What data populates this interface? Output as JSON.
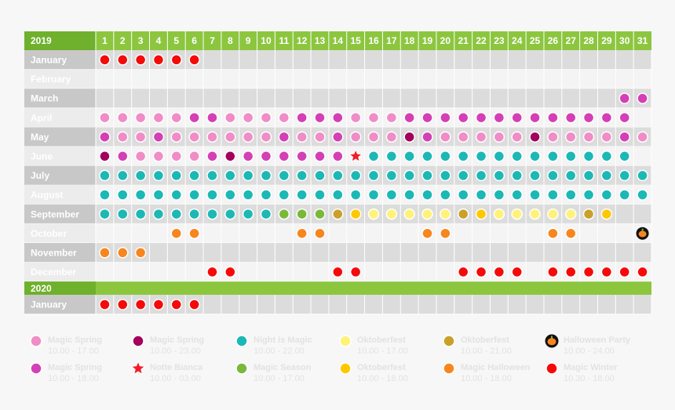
{
  "days": [
    1,
    2,
    3,
    4,
    5,
    6,
    7,
    8,
    9,
    10,
    11,
    12,
    13,
    14,
    15,
    16,
    17,
    18,
    19,
    20,
    21,
    22,
    23,
    24,
    25,
    26,
    27,
    28,
    29,
    30,
    31
  ],
  "legend": [
    {
      "name": "Magic Spring",
      "time": "10.00 - 17.00",
      "color": "#f08cc6",
      "shape": "dot"
    },
    {
      "name": "Magic Spring",
      "time": "10.00 - 23.00",
      "color": "#a3005c",
      "shape": "dot"
    },
    {
      "name": "Night is Magic",
      "time": "10.00 - 22.00",
      "color": "#1cb8b5",
      "shape": "dot"
    },
    {
      "name": "Oktoberfest",
      "time": "10.00 - 17.00",
      "color": "#fff27a",
      "shape": "dot"
    },
    {
      "name": "Oktoberfest",
      "time": "10.00 - 21.00",
      "color": "#c9a02a",
      "shape": "dot"
    },
    {
      "name": "Halloween Party",
      "time": "10.00 - 24.00",
      "color": "#f7861e",
      "shape": "pumpkin"
    },
    {
      "name": "Magic Spring",
      "time": "10.00 - 18.00",
      "color": "#d43fb5",
      "shape": "dot"
    },
    {
      "name": "Notte Bianca",
      "time": "10.00 - 03.00",
      "color": "#f01c2c",
      "shape": "star"
    },
    {
      "name": "Magic Season",
      "time": "10.00 - 17.00",
      "color": "#7ab83a",
      "shape": "dot"
    },
    {
      "name": "Oktoberfest",
      "time": "10.00 - 18.00",
      "color": "#ffc800",
      "shape": "dot"
    },
    {
      "name": "Magic Halloween",
      "time": "10.00 - 18.00",
      "color": "#f7861e",
      "shape": "dot"
    },
    {
      "name": "Magic Winter",
      "time": "10.30 - 18.00",
      "color": "#f50a0a",
      "shape": "dot"
    }
  ],
  "years": [
    {
      "label": "2019",
      "months": [
        {
          "name": "January",
          "cells": [
            11,
            11,
            11,
            11,
            11,
            11,
            null,
            null,
            null,
            null,
            null,
            null,
            null,
            null,
            null,
            null,
            null,
            null,
            null,
            null,
            null,
            null,
            null,
            null,
            null,
            null,
            null,
            null,
            null,
            null,
            null
          ]
        },
        {
          "name": "February",
          "cells": [
            null,
            null,
            null,
            null,
            null,
            null,
            null,
            null,
            null,
            null,
            null,
            null,
            null,
            null,
            null,
            null,
            null,
            null,
            null,
            null,
            null,
            null,
            null,
            null,
            null,
            null,
            null,
            null,
            null,
            null,
            null
          ]
        },
        {
          "name": "March",
          "cells": [
            null,
            null,
            null,
            null,
            null,
            null,
            null,
            null,
            null,
            null,
            null,
            null,
            null,
            null,
            null,
            null,
            null,
            null,
            null,
            null,
            null,
            null,
            null,
            null,
            null,
            null,
            null,
            null,
            null,
            6,
            6
          ]
        },
        {
          "name": "April",
          "cells": [
            0,
            0,
            0,
            0,
            0,
            6,
            6,
            0,
            0,
            0,
            0,
            6,
            6,
            6,
            0,
            0,
            0,
            6,
            6,
            6,
            6,
            6,
            6,
            6,
            6,
            6,
            6,
            6,
            6,
            6,
            null
          ]
        },
        {
          "name": "May",
          "cells": [
            6,
            0,
            0,
            6,
            0,
            0,
            0,
            0,
            0,
            0,
            6,
            0,
            0,
            6,
            0,
            0,
            0,
            1,
            6,
            0,
            0,
            0,
            0,
            0,
            1,
            0,
            0,
            0,
            0,
            6,
            0
          ]
        },
        {
          "name": "June",
          "cells": [
            1,
            6,
            0,
            0,
            0,
            0,
            6,
            1,
            6,
            6,
            6,
            6,
            6,
            6,
            7,
            2,
            2,
            2,
            2,
            2,
            2,
            2,
            2,
            2,
            2,
            2,
            2,
            2,
            2,
            2,
            null
          ]
        },
        {
          "name": "July",
          "cells": [
            2,
            2,
            2,
            2,
            2,
            2,
            2,
            2,
            2,
            2,
            2,
            2,
            2,
            2,
            2,
            2,
            2,
            2,
            2,
            2,
            2,
            2,
            2,
            2,
            2,
            2,
            2,
            2,
            2,
            2,
            2
          ]
        },
        {
          "name": "August",
          "cells": [
            2,
            2,
            2,
            2,
            2,
            2,
            2,
            2,
            2,
            2,
            2,
            2,
            2,
            2,
            2,
            2,
            2,
            2,
            2,
            2,
            2,
            2,
            2,
            2,
            2,
            2,
            2,
            2,
            2,
            2,
            2
          ]
        },
        {
          "name": "September",
          "cells": [
            2,
            2,
            2,
            2,
            2,
            2,
            2,
            2,
            2,
            2,
            8,
            8,
            8,
            4,
            9,
            3,
            3,
            3,
            3,
            3,
            4,
            9,
            3,
            3,
            3,
            3,
            3,
            4,
            9,
            null,
            null
          ]
        },
        {
          "name": "October",
          "cells": [
            null,
            null,
            null,
            null,
            10,
            10,
            null,
            null,
            null,
            null,
            null,
            10,
            10,
            null,
            null,
            null,
            null,
            null,
            10,
            10,
            null,
            null,
            null,
            null,
            null,
            10,
            10,
            null,
            null,
            null,
            5
          ]
        },
        {
          "name": "November",
          "cells": [
            10,
            10,
            10,
            null,
            null,
            null,
            null,
            null,
            null,
            null,
            null,
            null,
            null,
            null,
            null,
            null,
            null,
            null,
            null,
            null,
            null,
            null,
            null,
            null,
            null,
            null,
            null,
            null,
            null,
            null,
            null
          ]
        },
        {
          "name": "December",
          "cells": [
            null,
            null,
            null,
            null,
            null,
            null,
            11,
            11,
            null,
            null,
            null,
            null,
            null,
            11,
            11,
            null,
            null,
            null,
            null,
            null,
            11,
            11,
            11,
            11,
            null,
            11,
            11,
            11,
            11,
            11,
            11
          ]
        }
      ]
    },
    {
      "label": "2020",
      "months": [
        {
          "name": "January",
          "cells": [
            11,
            11,
            11,
            11,
            11,
            11,
            null,
            null,
            null,
            null,
            null,
            null,
            null,
            null,
            null,
            null,
            null,
            null,
            null,
            null,
            null,
            null,
            null,
            null,
            null,
            null,
            null,
            null,
            null,
            null,
            null
          ]
        }
      ]
    }
  ]
}
